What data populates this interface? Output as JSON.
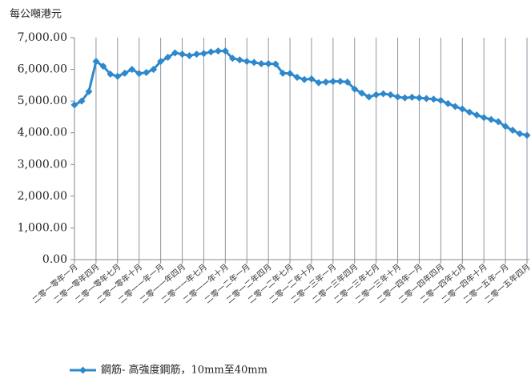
{
  "chart_data": {
    "type": "line",
    "y_axis_label": "每公噸港元",
    "categories": [
      "二零一零年一月",
      null,
      null,
      "二零一零年四月",
      null,
      null,
      "二零一零年七月",
      null,
      null,
      "二零一零年十月",
      null,
      null,
      "二零一一年一月",
      null,
      null,
      "二零一一年四月",
      null,
      null,
      "二零一一年七月",
      null,
      null,
      "二零一一年十月",
      null,
      null,
      "二零一二年一月",
      null,
      null,
      "二零一二年四月",
      null,
      null,
      "二零一二年七月",
      null,
      null,
      "二零一二年十月",
      null,
      null,
      "二零一三年一月",
      null,
      null,
      "二零一三年四月",
      null,
      null,
      "二零一三年七月",
      null,
      null,
      "二零一三年十月",
      null,
      null,
      "二零一四年一月",
      null,
      null,
      "二零一四年四月",
      null,
      null,
      "二零一四年七月",
      null,
      null,
      "二零一四年十月",
      null,
      null,
      "二零一五年一月",
      null,
      null,
      "二零一五年四月"
    ],
    "series": [
      {
        "name": "鋼筋- 高強度鋼筋，10mm至40mm",
        "color": "#2e88cc",
        "values": [
          4880,
          5000,
          5300,
          6250,
          6100,
          5850,
          5780,
          5880,
          6000,
          5870,
          5900,
          6000,
          6250,
          6380,
          6520,
          6480,
          6430,
          6480,
          6500,
          6550,
          6580,
          6580,
          6350,
          6300,
          6250,
          6220,
          6180,
          6180,
          6170,
          5880,
          5870,
          5750,
          5680,
          5700,
          5580,
          5600,
          5620,
          5620,
          5600,
          5380,
          5250,
          5130,
          5200,
          5230,
          5200,
          5130,
          5100,
          5120,
          5100,
          5080,
          5060,
          5020,
          4920,
          4830,
          4750,
          4650,
          4560,
          4480,
          4420,
          4350,
          4200,
          4080,
          3970,
          3920
        ]
      }
    ],
    "ylim": [
      0,
      7000
    ],
    "yticks": [
      {
        "value": 0,
        "label": "0.00"
      },
      {
        "value": 1000,
        "label": "1,000.00"
      },
      {
        "value": 2000,
        "label": "2,000.00"
      },
      {
        "value": 3000,
        "label": "3,000.00"
      },
      {
        "value": 4000,
        "label": "4,000.00"
      },
      {
        "value": 5000,
        "label": "5,000.00"
      },
      {
        "value": 6000,
        "label": "6,000.00"
      },
      {
        "value": 7000,
        "label": "7,000.00"
      }
    ],
    "grid": true,
    "legend": "bottom"
  }
}
